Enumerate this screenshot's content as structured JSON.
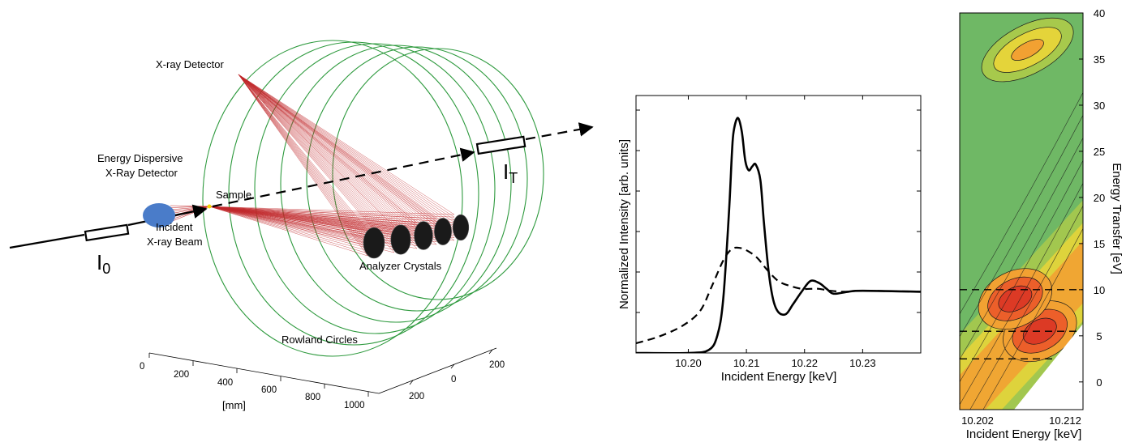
{
  "setup_diagram": {
    "labels": {
      "xray_detector": "X-ray Detector",
      "ed_detector_line1": "Energy Dispersive",
      "ed_detector_line2": "X-Ray Detector",
      "sample": "Sample",
      "incident_line1": "Incident",
      "incident_line2": "X-ray Beam",
      "analyzer": "Analyzer Crystals",
      "rowland": "Rowland Circles",
      "i0_main": "I",
      "i0_sub": "0",
      "it_main": "I",
      "it_sub": "T"
    },
    "axis": {
      "x_ticks": [
        "0",
        "200",
        "400",
        "600",
        "800",
        "1000"
      ],
      "x_unit": "[mm]",
      "y_ticks": [
        "200",
        "0",
        "200"
      ]
    },
    "colors": {
      "rowland": "#2e9a3e",
      "rays": "#c0282b",
      "ed_detector": "#4a7cc9"
    }
  },
  "chart_data": [
    {
      "type": "line",
      "xlabel": "Incident Energy [keV]",
      "ylabel": "Normalized Intensity [arb. units]",
      "xlim": [
        10.191,
        10.24
      ],
      "ylim": [
        0,
        2.65
      ],
      "x_ticks": [
        "10.20",
        "10.21",
        "10.22",
        "10.23"
      ],
      "x_tick_values": [
        10.2,
        10.21,
        10.22,
        10.23
      ],
      "series": [
        {
          "style": "solid",
          "x": [
            10.191,
            10.2,
            10.2035,
            10.205,
            10.206,
            10.207,
            10.2075,
            10.2078,
            10.2085,
            10.2092,
            10.2098,
            10.2104,
            10.211,
            10.2116,
            10.2124,
            10.213,
            10.2138,
            10.2146,
            10.2155,
            10.2168,
            10.218,
            10.2195,
            10.221,
            10.2225,
            10.2238,
            10.225,
            10.2275,
            10.23,
            10.24
          ],
          "y": [
            0.0,
            0.0,
            0.03,
            0.18,
            0.55,
            1.45,
            2.05,
            2.28,
            2.42,
            2.28,
            1.98,
            1.88,
            1.92,
            1.94,
            1.78,
            1.35,
            0.85,
            0.55,
            0.42,
            0.4,
            0.5,
            0.63,
            0.74,
            0.72,
            0.66,
            0.61,
            0.63,
            0.64,
            0.63
          ]
        },
        {
          "style": "dashed",
          "x": [
            10.191,
            10.195,
            10.199,
            10.202,
            10.204,
            10.206,
            10.2075,
            10.209,
            10.2105,
            10.212,
            10.2135,
            10.2155,
            10.2175,
            10.2195,
            10.221,
            10.2225,
            10.2245,
            10.227,
            10.23,
            10.24
          ],
          "y": [
            0.1,
            0.17,
            0.28,
            0.43,
            0.68,
            0.95,
            1.07,
            1.08,
            1.04,
            0.97,
            0.86,
            0.74,
            0.69,
            0.66,
            0.66,
            0.66,
            0.64,
            0.63,
            0.64,
            0.63
          ]
        }
      ]
    },
    {
      "type": "heatmap",
      "xlabel": "Incident Energy [keV]",
      "ylabel": "Energy Transfer [eV]",
      "xlim": [
        10.202,
        10.212
      ],
      "ylim": [
        -3,
        40
      ],
      "x_ticks": [
        "10.202",
        "10.212"
      ],
      "x_tick_values": [
        10.202,
        10.212
      ],
      "y_ticks": [
        "40",
        "35",
        "30",
        "25",
        "20",
        "15",
        "10",
        "5",
        "0"
      ],
      "y_tick_values": [
        40,
        35,
        30,
        25,
        20,
        15,
        10,
        5,
        0
      ],
      "cut_lines_y": [
        10,
        5.5,
        2.5
      ],
      "peaks": [
        {
          "x": 10.2085,
          "y": 5.5,
          "level": "high"
        },
        {
          "x": 10.2065,
          "y": 9.0,
          "level": "high"
        },
        {
          "x": 10.2075,
          "y": 36.0,
          "level": "medium"
        }
      ],
      "colors": [
        "#6fb865",
        "#a7c94c",
        "#e4d43a",
        "#f2a132",
        "#ec5f2a",
        "#dc3a25"
      ]
    }
  ]
}
